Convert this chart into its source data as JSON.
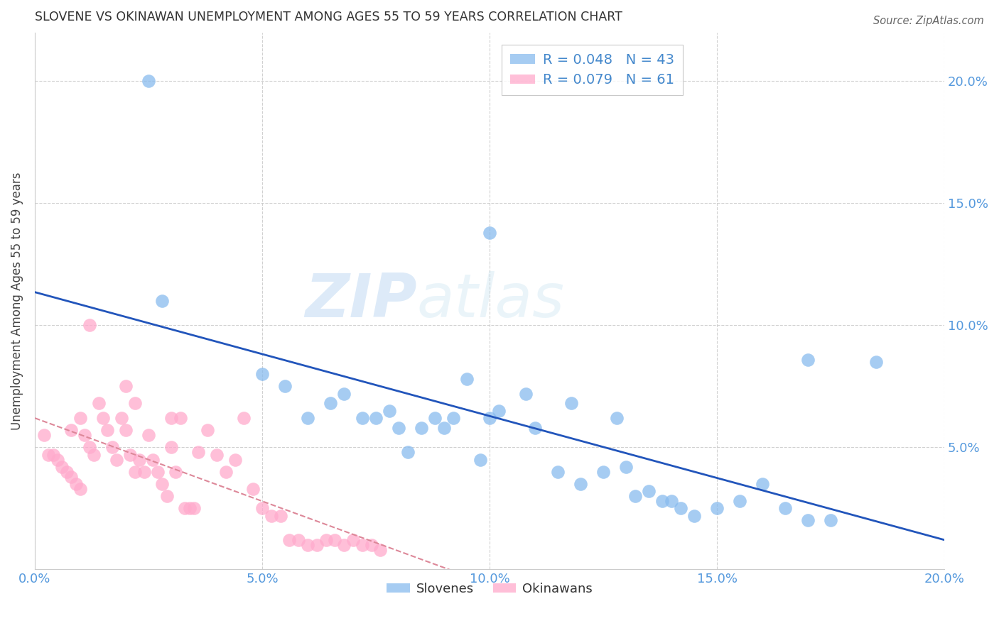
{
  "title": "SLOVENE VS OKINAWAN UNEMPLOYMENT AMONG AGES 55 TO 59 YEARS CORRELATION CHART",
  "source": "Source: ZipAtlas.com",
  "ylabel": "Unemployment Among Ages 55 to 59 years",
  "xlim": [
    0.0,
    0.2
  ],
  "ylim": [
    0.0,
    0.22
  ],
  "xtick_vals": [
    0.0,
    0.05,
    0.1,
    0.15,
    0.2
  ],
  "xtick_labels": [
    "0.0%",
    "5.0%",
    "10.0%",
    "15.0%",
    "20.0%"
  ],
  "ytick_vals": [
    0.05,
    0.1,
    0.15,
    0.2
  ],
  "ytick_labels": [
    "5.0%",
    "10.0%",
    "15.0%",
    "20.0%"
  ],
  "slovene_R": 0.048,
  "slovene_N": 43,
  "okinawan_R": 0.079,
  "okinawan_N": 61,
  "slovene_color": "#88BBEE",
  "okinawan_color": "#FFAACC",
  "slovene_line_color": "#2255BB",
  "okinawan_line_color": "#DD8899",
  "watermark_zip": "ZIP",
  "watermark_atlas": "atlas",
  "slovene_x": [
    0.025,
    0.028,
    0.1,
    0.17,
    0.05,
    0.055,
    0.06,
    0.065,
    0.068,
    0.072,
    0.075,
    0.078,
    0.08,
    0.082,
    0.085,
    0.088,
    0.09,
    0.092,
    0.095,
    0.098,
    0.1,
    0.102,
    0.108,
    0.11,
    0.115,
    0.118,
    0.12,
    0.125,
    0.128,
    0.13,
    0.132,
    0.135,
    0.138,
    0.14,
    0.142,
    0.145,
    0.15,
    0.155,
    0.16,
    0.165,
    0.17,
    0.175,
    0.185
  ],
  "slovene_y": [
    0.2,
    0.11,
    0.138,
    0.086,
    0.08,
    0.075,
    0.062,
    0.068,
    0.072,
    0.062,
    0.062,
    0.065,
    0.058,
    0.048,
    0.058,
    0.062,
    0.058,
    0.062,
    0.078,
    0.045,
    0.062,
    0.065,
    0.072,
    0.058,
    0.04,
    0.068,
    0.035,
    0.04,
    0.062,
    0.042,
    0.03,
    0.032,
    0.028,
    0.028,
    0.025,
    0.022,
    0.025,
    0.028,
    0.035,
    0.025,
    0.02,
    0.02,
    0.085
  ],
  "okinawan_x": [
    0.002,
    0.003,
    0.004,
    0.005,
    0.006,
    0.007,
    0.008,
    0.008,
    0.009,
    0.01,
    0.01,
    0.011,
    0.012,
    0.012,
    0.013,
    0.014,
    0.015,
    0.016,
    0.017,
    0.018,
    0.019,
    0.02,
    0.02,
    0.021,
    0.022,
    0.022,
    0.023,
    0.024,
    0.025,
    0.026,
    0.027,
    0.028,
    0.029,
    0.03,
    0.03,
    0.031,
    0.032,
    0.033,
    0.034,
    0.035,
    0.036,
    0.038,
    0.04,
    0.042,
    0.044,
    0.046,
    0.048,
    0.05,
    0.052,
    0.054,
    0.056,
    0.058,
    0.06,
    0.062,
    0.064,
    0.066,
    0.068,
    0.07,
    0.072,
    0.074,
    0.076
  ],
  "okinawan_y": [
    0.055,
    0.047,
    0.047,
    0.045,
    0.042,
    0.04,
    0.038,
    0.057,
    0.035,
    0.033,
    0.062,
    0.055,
    0.05,
    0.1,
    0.047,
    0.068,
    0.062,
    0.057,
    0.05,
    0.045,
    0.062,
    0.057,
    0.075,
    0.047,
    0.04,
    0.068,
    0.045,
    0.04,
    0.055,
    0.045,
    0.04,
    0.035,
    0.03,
    0.062,
    0.05,
    0.04,
    0.062,
    0.025,
    0.025,
    0.025,
    0.048,
    0.057,
    0.047,
    0.04,
    0.045,
    0.062,
    0.033,
    0.025,
    0.022,
    0.022,
    0.012,
    0.012,
    0.01,
    0.01,
    0.012,
    0.012,
    0.01,
    0.012,
    0.01,
    0.01,
    0.008
  ]
}
